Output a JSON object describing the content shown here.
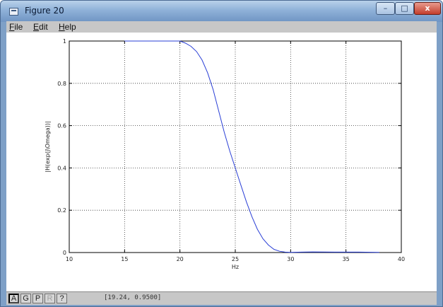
{
  "window": {
    "title": "Figure 20",
    "minimize_label": "–",
    "maximize_label": "□",
    "close_label": "x"
  },
  "menu": {
    "items": [
      {
        "underline": "F",
        "rest": "ile"
      },
      {
        "underline": "E",
        "rest": "dit"
      },
      {
        "underline": "H",
        "rest": "elp"
      }
    ]
  },
  "toolbar": {
    "buttons": [
      "A",
      "G",
      "P",
      "R",
      "?"
    ]
  },
  "status": {
    "coordinates": "[19.24, 0.9500]"
  },
  "chart_data": {
    "type": "line",
    "xlabel": "Hz",
    "ylabel": "|H(exp(j\\Omega))|",
    "xlim": [
      10,
      40
    ],
    "ylim": [
      0,
      1
    ],
    "x_ticks": [
      10,
      15,
      20,
      25,
      30,
      35,
      40
    ],
    "x_tick_labels": [
      "10",
      "15",
      "20",
      "25",
      "30",
      "35",
      "40"
    ],
    "y_ticks": [
      0,
      0.2,
      0.4,
      0.6,
      0.8,
      1
    ],
    "y_tick_labels": [
      "0",
      "0.2",
      "0.4",
      "0.6",
      "0.8",
      "1"
    ],
    "grid": true,
    "line_color": "#2a3fd6",
    "series": [
      {
        "x": [
          15,
          16,
          17,
          18,
          19,
          20,
          20.5,
          21,
          21.5,
          22,
          22.5,
          23,
          23.5,
          24,
          24.5,
          25,
          25.5,
          26,
          26.5,
          27,
          27.5,
          28,
          28.5,
          29,
          29.5,
          30,
          31,
          32,
          34,
          36,
          38
        ],
        "y": [
          1,
          1,
          1,
          1,
          1,
          1,
          0.99,
          0.975,
          0.95,
          0.91,
          0.85,
          0.77,
          0.67,
          0.57,
          0.48,
          0.4,
          0.32,
          0.24,
          0.17,
          0.11,
          0.065,
          0.035,
          0.015,
          0.006,
          0.002,
          0.001,
          0.002,
          0.003,
          0.002,
          0.002,
          0.001
        ]
      }
    ]
  }
}
